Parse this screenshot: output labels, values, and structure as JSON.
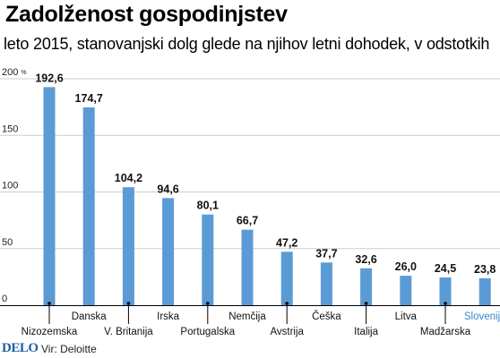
{
  "header": {
    "title": "Zadolženost gospodinjstev",
    "subtitle": "leto 2015, stanovanjski dolg glede na njihov letni dohodek, v odstotkih"
  },
  "footer": {
    "brand": "DELO",
    "source": "Vir: Deloitte"
  },
  "colors": {
    "bar": "#5b9bd5",
    "highlight_label": "#3a86c8",
    "grid": "#cccccc",
    "axis": "#000000"
  },
  "chart_data": {
    "type": "bar",
    "title": "Zadolženost gospodinjstev",
    "subtitle": "leto 2015, stanovanjski dolg glede na njihov letni dohodek, v odstotkih",
    "xlabel": "",
    "ylabel": "",
    "y_unit": "%",
    "ylim": [
      0,
      200
    ],
    "yticks": [
      0,
      50,
      100,
      150,
      200
    ],
    "ytick_labels": [
      "0",
      "50",
      "100",
      "150",
      "200 %"
    ],
    "grid": true,
    "categories": [
      "Nizozemska",
      "Danska",
      "V. Britanija",
      "Irska",
      "Portugalska",
      "Nemčija",
      "Avstrija",
      "Češka",
      "Italija",
      "Litva",
      "Madžarska",
      "Slovenija"
    ],
    "values": [
      192.6,
      174.7,
      104.2,
      94.6,
      80.1,
      66.7,
      47.2,
      37.7,
      32.6,
      26.0,
      24.5,
      23.8
    ],
    "value_labels": [
      "192,6",
      "174,7",
      "104,2",
      "94,6",
      "80,1",
      "66,7",
      "47,2",
      "37,7",
      "32,6",
      "26,0",
      "24,5",
      "23,8"
    ],
    "highlight": "Slovenija"
  }
}
